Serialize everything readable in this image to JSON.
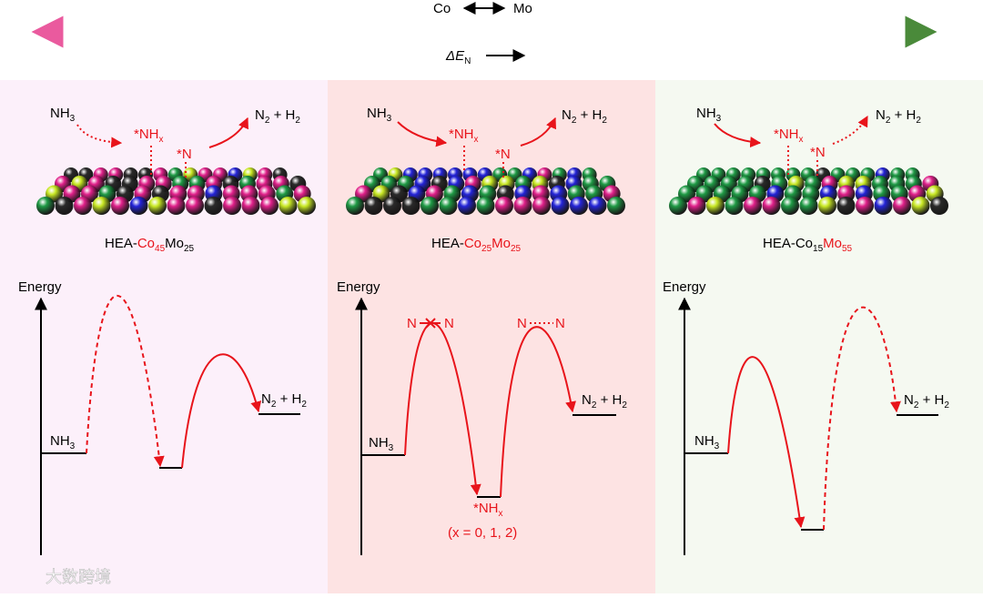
{
  "header": {
    "left": "Co",
    "right": "Mo",
    "delta": [
      "ΔE",
      "N"
    ]
  },
  "panels": [
    {
      "reactant": [
        "NH",
        "3"
      ],
      "intermediate": [
        "*NH",
        "x"
      ],
      "adsorbed": "*N",
      "product": [
        "N",
        "2",
        " + H",
        "2"
      ],
      "label": [
        "HEA-",
        "Co",
        "45",
        "Mo",
        "25"
      ],
      "energy_axis": "Energy",
      "energy_reactant": [
        "NH",
        "3"
      ],
      "energy_product": [
        "N",
        "2",
        " + H",
        "2"
      ]
    },
    {
      "reactant": [
        "NH",
        "3"
      ],
      "intermediate": [
        "*NH",
        "x"
      ],
      "adsorbed": "*N",
      "product": [
        "N",
        "2",
        " + H",
        "2"
      ],
      "label": [
        "HEA-",
        "Co",
        "25",
        "Mo",
        "25"
      ],
      "energy_axis": "Energy",
      "energy_reactant": [
        "NH",
        "3"
      ],
      "energy_product": [
        "N",
        "2",
        " + H",
        "2"
      ],
      "transition_1": [
        "N",
        "N"
      ],
      "transition_2": [
        "N",
        "N"
      ],
      "energy_intermediate": [
        "*NH",
        "x"
      ],
      "note": "(x = 0, 1, 2)"
    },
    {
      "reactant": [
        "NH",
        "3"
      ],
      "intermediate": [
        "*NH",
        "x"
      ],
      "adsorbed": "*N",
      "product": [
        "N",
        "2",
        " + H",
        "2"
      ],
      "label": [
        "HEA-",
        "Co",
        "15",
        "Mo",
        "55"
      ],
      "energy_axis": "Energy",
      "energy_reactant": [
        "NH",
        "3"
      ],
      "energy_product": [
        "N",
        "2",
        " + H",
        "2"
      ]
    }
  ],
  "watermark": "大数跨境"
}
